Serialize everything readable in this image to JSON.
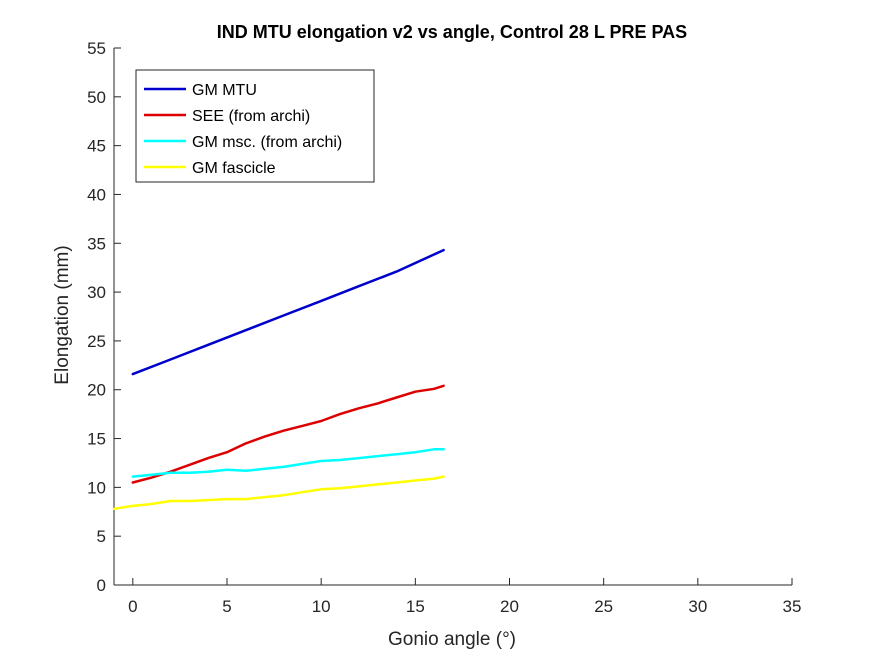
{
  "chart_data": {
    "type": "line",
    "title": "IND MTU elongation v2 vs angle, Control 28 L PRE PAS",
    "xlabel": "Gonio angle (°)",
    "ylabel": "Elongation (mm)",
    "xlim": [
      -1,
      35
    ],
    "ylim": [
      0,
      55
    ],
    "xticks": [
      0,
      5,
      10,
      15,
      20,
      25,
      30,
      35
    ],
    "yticks": [
      0,
      5,
      10,
      15,
      20,
      25,
      30,
      35,
      40,
      45,
      50,
      55
    ],
    "grid": false,
    "legend_position": "top-left",
    "series": [
      {
        "name": "GM MTU",
        "color": "#0000cc",
        "points": [
          [
            0,
            21.6
          ],
          [
            2,
            23.1
          ],
          [
            4,
            24.6
          ],
          [
            6,
            26.1
          ],
          [
            8,
            27.6
          ],
          [
            10,
            29.1
          ],
          [
            12,
            30.6
          ],
          [
            14,
            32.1
          ],
          [
            16.5,
            34.3
          ]
        ]
      },
      {
        "name": "SEE (from archi)",
        "color": "#dd0000",
        "points": [
          [
            0,
            10.5
          ],
          [
            1,
            11.0
          ],
          [
            2,
            11.6
          ],
          [
            3,
            12.3
          ],
          [
            4,
            13.0
          ],
          [
            5,
            13.6
          ],
          [
            6,
            14.5
          ],
          [
            7,
            15.2
          ],
          [
            8,
            15.8
          ],
          [
            9,
            16.3
          ],
          [
            10,
            16.8
          ],
          [
            11,
            17.5
          ],
          [
            12,
            18.1
          ],
          [
            13,
            18.6
          ],
          [
            14,
            19.2
          ],
          [
            15,
            19.8
          ],
          [
            16,
            20.1
          ],
          [
            16.5,
            20.4
          ]
        ]
      },
      {
        "name": "GM msc. (from archi)",
        "color": "#00ffff",
        "points": [
          [
            0,
            11.1
          ],
          [
            1,
            11.3
          ],
          [
            2,
            11.5
          ],
          [
            3,
            11.5
          ],
          [
            4,
            11.6
          ],
          [
            5,
            11.8
          ],
          [
            6,
            11.7
          ],
          [
            7,
            11.9
          ],
          [
            8,
            12.1
          ],
          [
            9,
            12.4
          ],
          [
            10,
            12.7
          ],
          [
            11,
            12.8
          ],
          [
            12,
            13.0
          ],
          [
            13,
            13.2
          ],
          [
            14,
            13.4
          ],
          [
            15,
            13.6
          ],
          [
            16,
            13.9
          ],
          [
            16.5,
            13.9
          ]
        ]
      },
      {
        "name": "GM fascicle",
        "color": "#ffff00",
        "points": [
          [
            -1,
            7.8
          ],
          [
            0,
            8.1
          ],
          [
            1,
            8.3
          ],
          [
            2,
            8.6
          ],
          [
            3,
            8.6
          ],
          [
            4,
            8.7
          ],
          [
            5,
            8.8
          ],
          [
            6,
            8.8
          ],
          [
            7,
            9.0
          ],
          [
            8,
            9.2
          ],
          [
            9,
            9.5
          ],
          [
            10,
            9.8
          ],
          [
            11,
            9.9
          ],
          [
            12,
            10.1
          ],
          [
            13,
            10.3
          ],
          [
            14,
            10.5
          ],
          [
            15,
            10.7
          ],
          [
            16,
            10.9
          ],
          [
            16.5,
            11.1
          ]
        ]
      }
    ]
  }
}
